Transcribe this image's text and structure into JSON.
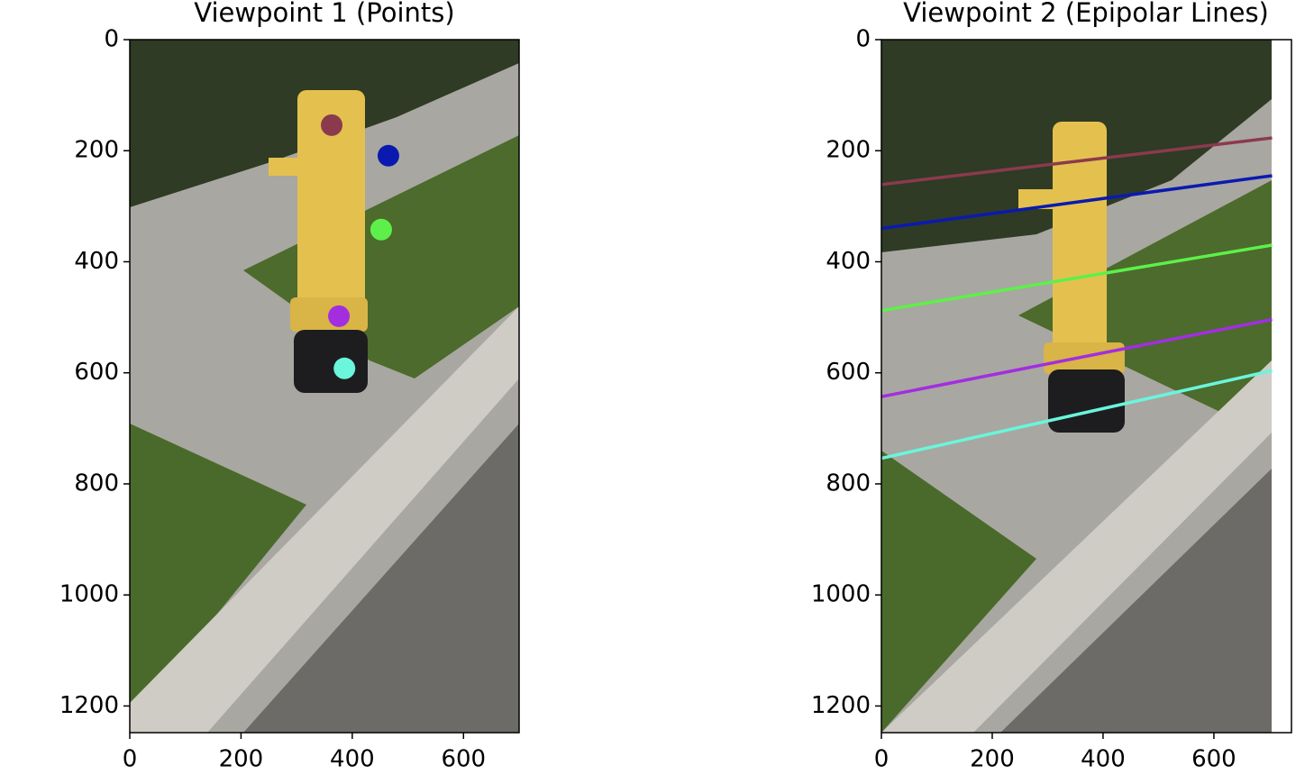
{
  "chart_data": [
    {
      "type": "scatter",
      "title": "Viewpoint 1 (Points)",
      "x": [
        363,
        465,
        452,
        376,
        386
      ],
      "y": [
        154,
        209,
        342,
        498,
        592
      ],
      "colors": [
        "#8b3a4e",
        "#0a1ab0",
        "#5ef04a",
        "#a22ee0",
        "#6af5dc"
      ],
      "xlim": [
        0,
        700
      ],
      "ylim": [
        1248,
        0
      ],
      "xticks": [
        0,
        200,
        400,
        600
      ],
      "yticks": [
        0,
        200,
        400,
        600,
        800,
        1000,
        1200
      ]
    },
    {
      "type": "line",
      "title": "Viewpoint 2 (Epipolar Lines)",
      "series": [
        {
          "color": "#8b3a4e",
          "x": [
            0,
            705
          ],
          "values": [
            261,
            177
          ]
        },
        {
          "color": "#0a1ab0",
          "x": [
            0,
            705
          ],
          "values": [
            340,
            245
          ]
        },
        {
          "color": "#5ef04a",
          "x": [
            0,
            705
          ],
          "values": [
            488,
            370
          ]
        },
        {
          "color": "#a22ee0",
          "x": [
            0,
            705
          ],
          "values": [
            643,
            504
          ]
        },
        {
          "color": "#6af5dc",
          "x": [
            0,
            705
          ],
          "values": [
            754,
            596
          ]
        }
      ],
      "xlim": [
        0,
        740
      ],
      "ylim": [
        1248,
        0
      ],
      "xticks": [
        0,
        200,
        400,
        600
      ],
      "yticks": [
        0,
        200,
        400,
        600,
        800,
        1000,
        1200
      ]
    }
  ]
}
